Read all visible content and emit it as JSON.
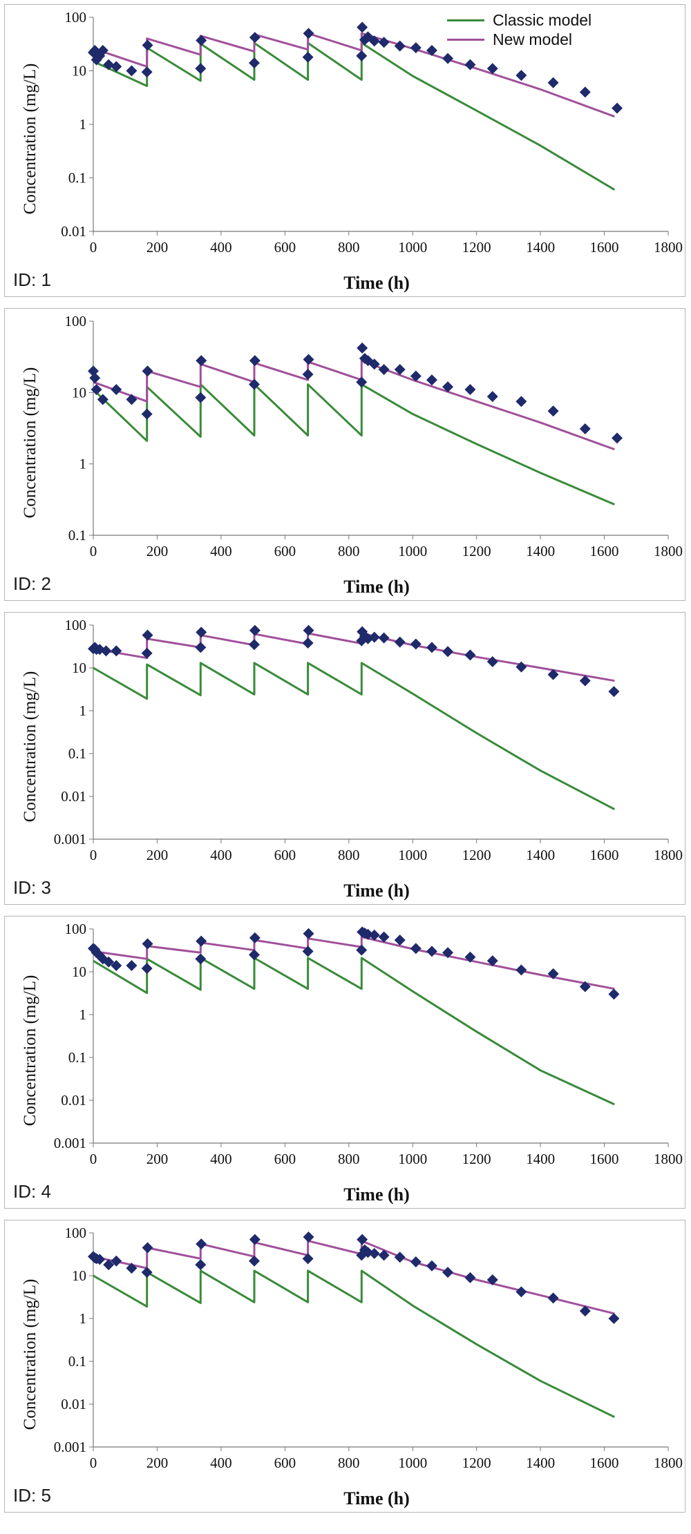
{
  "legend": {
    "entries": [
      {
        "label": "Classic model",
        "color": "#3a8a3a"
      },
      {
        "label": "New model",
        "color": "#a0509a"
      }
    ]
  },
  "colors": {
    "classic": "#3a8a3a",
    "new": "#a0509a",
    "observed": "#1f2a6b",
    "axis": "#777777"
  },
  "chart_data": [
    {
      "type": "line",
      "panel_label": "ID: 1",
      "xlabel": "Time (h)",
      "ylabel": "Concentration (mg/L)",
      "y_scale": "log",
      "xlim": [
        0,
        1800
      ],
      "ylim": [
        0.01,
        100
      ],
      "xticks": [
        "0",
        "200",
        "400",
        "600",
        "800",
        "1000",
        "1200",
        "1400",
        "1600",
        "1800"
      ],
      "yticks": [
        "0.01",
        "0.1",
        "1",
        "10",
        "100"
      ],
      "series": [
        {
          "name": "Classic model",
          "x": [
            0,
            168,
            168,
            336,
            336,
            504,
            504,
            672,
            672,
            840,
            840,
            1000,
            1200,
            1400,
            1632
          ],
          "y": [
            15,
            5.2,
            27,
            6.5,
            32,
            6.8,
            33,
            6.8,
            33,
            6.8,
            33,
            8,
            1.8,
            0.4,
            0.06
          ]
        },
        {
          "name": "New model",
          "x": [
            0,
            168,
            168,
            336,
            336,
            504,
            504,
            672,
            672,
            840,
            840,
            1000,
            1200,
            1400,
            1632
          ],
          "y": [
            26,
            12,
            40,
            20,
            45,
            23,
            48,
            25,
            50,
            24,
            50,
            26,
            11,
            4.5,
            1.4
          ]
        },
        {
          "type": "scatter",
          "x": [
            0,
            5,
            10,
            20,
            30,
            48,
            72,
            120,
            168,
            170,
            336,
            338,
            504,
            506,
            672,
            674,
            840,
            842,
            850,
            860,
            880,
            910,
            960,
            1010,
            1060,
            1110,
            1180,
            1250,
            1340,
            1440,
            1540,
            1640
          ],
          "y": [
            22,
            24,
            16,
            19,
            24,
            13,
            12,
            10,
            9.5,
            30,
            11,
            37,
            14,
            42,
            18,
            50,
            19,
            65,
            38,
            43,
            36,
            34,
            29,
            27,
            24,
            17,
            13,
            11,
            8.2,
            6,
            4,
            2
          ]
        }
      ]
    },
    {
      "type": "line",
      "panel_label": "ID: 2",
      "xlabel": "Time (h)",
      "ylabel": "Concentration (mg/L)",
      "y_scale": "log",
      "xlim": [
        0,
        1800
      ],
      "ylim": [
        0.1,
        100
      ],
      "xticks": [
        "0",
        "200",
        "400",
        "600",
        "800",
        "1000",
        "1200",
        "1400",
        "1600",
        "1800"
      ],
      "yticks": [
        "0.1",
        "1",
        "10",
        "100"
      ],
      "series": [
        {
          "name": "Classic model",
          "x": [
            0,
            168,
            168,
            336,
            336,
            504,
            504,
            672,
            672,
            840,
            840,
            1000,
            1200,
            1400,
            1632
          ],
          "y": [
            11,
            2.1,
            12,
            2.4,
            13,
            2.5,
            13,
            2.5,
            13,
            2.5,
            13,
            5,
            1.9,
            0.75,
            0.27
          ]
        },
        {
          "name": "New model",
          "x": [
            0,
            168,
            168,
            336,
            336,
            504,
            504,
            672,
            672,
            840,
            840,
            1000,
            1200,
            1400,
            1632
          ],
          "y": [
            14,
            7.5,
            20,
            12,
            25,
            14,
            26,
            15,
            27,
            15,
            28,
            15,
            7.5,
            3.8,
            1.6
          ]
        },
        {
          "type": "scatter",
          "x": [
            0,
            5,
            10,
            30,
            72,
            120,
            168,
            170,
            336,
            338,
            504,
            506,
            672,
            674,
            840,
            842,
            850,
            860,
            880,
            910,
            960,
            1010,
            1060,
            1110,
            1180,
            1250,
            1340,
            1440,
            1540,
            1640
          ],
          "y": [
            20,
            16,
            11,
            8,
            11,
            8,
            5,
            20,
            8.5,
            28,
            13,
            28,
            18,
            29,
            14,
            42,
            30,
            28,
            25,
            21,
            21,
            17,
            15,
            12,
            11,
            8.8,
            7.5,
            5.5,
            3.1,
            2.3
          ]
        }
      ]
    },
    {
      "type": "line",
      "panel_label": "ID: 3",
      "xlabel": "Time (h)",
      "ylabel": "Concentration (mg/L)",
      "y_scale": "log",
      "xlim": [
        0,
        1800
      ],
      "ylim": [
        0.001,
        100
      ],
      "xticks": [
        "0",
        "200",
        "400",
        "600",
        "800",
        "1000",
        "1200",
        "1400",
        "1600",
        "1800"
      ],
      "yticks": [
        "0.001",
        "0.01",
        "0.1",
        "1",
        "10",
        "100"
      ],
      "series": [
        {
          "name": "Classic model",
          "x": [
            0,
            168,
            168,
            336,
            336,
            504,
            504,
            672,
            672,
            840,
            840,
            1000,
            1200,
            1400,
            1632
          ],
          "y": [
            10,
            1.9,
            12,
            2.3,
            13,
            2.4,
            13,
            2.4,
            13,
            2.4,
            13,
            2.5,
            0.3,
            0.04,
            0.005
          ]
        },
        {
          "name": "New model",
          "x": [
            0,
            168,
            168,
            336,
            336,
            504,
            504,
            672,
            672,
            840,
            840,
            1000,
            1200,
            1400,
            1632
          ],
          "y": [
            28,
            17,
            48,
            30,
            58,
            34,
            62,
            36,
            64,
            37,
            64,
            34,
            18,
            10,
            5
          ]
        },
        {
          "type": "scatter",
          "x": [
            0,
            5,
            10,
            20,
            40,
            72,
            168,
            170,
            336,
            338,
            504,
            506,
            672,
            674,
            840,
            842,
            850,
            860,
            880,
            910,
            960,
            1010,
            1060,
            1110,
            1180,
            1250,
            1340,
            1440,
            1540,
            1630
          ],
          "y": [
            28,
            30,
            27,
            27,
            25,
            25,
            22,
            58,
            30,
            68,
            35,
            75,
            38,
            75,
            43,
            70,
            55,
            48,
            52,
            50,
            40,
            36,
            30,
            24,
            20,
            14,
            10.5,
            7,
            5,
            2.8
          ]
        }
      ]
    },
    {
      "type": "line",
      "panel_label": "ID: 4",
      "xlabel": "Time (h)",
      "ylabel": "Concentration (mg/L)",
      "y_scale": "log",
      "xlim": [
        0,
        1800
      ],
      "ylim": [
        0.001,
        100
      ],
      "xticks": [
        "0",
        "200",
        "400",
        "600",
        "800",
        "1000",
        "1200",
        "1400",
        "1600",
        "1800"
      ],
      "yticks": [
        "0.001",
        "0.01",
        "0.1",
        "1",
        "10",
        "100"
      ],
      "series": [
        {
          "name": "Classic model",
          "x": [
            0,
            168,
            168,
            336,
            336,
            504,
            504,
            672,
            672,
            840,
            840,
            1000,
            1200,
            1400,
            1632
          ],
          "y": [
            18,
            3.2,
            20,
            3.8,
            21,
            4,
            21,
            4,
            21,
            4,
            21,
            3.5,
            0.4,
            0.05,
            0.008
          ]
        },
        {
          "name": "New model",
          "x": [
            0,
            168,
            168,
            336,
            336,
            504,
            504,
            672,
            672,
            840,
            840,
            1000,
            1200,
            1400,
            1632
          ],
          "y": [
            30,
            20,
            40,
            28,
            48,
            32,
            55,
            35,
            60,
            38,
            65,
            34,
            17,
            8.5,
            4
          ]
        },
        {
          "type": "scatter",
          "x": [
            0,
            5,
            10,
            20,
            30,
            48,
            72,
            120,
            168,
            170,
            336,
            338,
            504,
            506,
            672,
            674,
            840,
            842,
            850,
            860,
            880,
            910,
            960,
            1010,
            1060,
            1110,
            1180,
            1250,
            1340,
            1440,
            1540,
            1630
          ],
          "y": [
            35,
            33,
            28,
            24,
            20,
            17,
            14,
            14,
            12,
            45,
            20,
            52,
            25,
            62,
            30,
            78,
            32,
            85,
            80,
            75,
            72,
            65,
            55,
            35,
            30,
            28,
            22,
            18,
            11,
            9,
            4.5,
            3
          ]
        }
      ]
    },
    {
      "type": "line",
      "panel_label": "ID: 5",
      "xlabel": "Time (h)",
      "ylabel": "Concentration (mg/L)",
      "y_scale": "log",
      "xlim": [
        0,
        1800
      ],
      "ylim": [
        0.001,
        100
      ],
      "xticks": [
        "0",
        "200",
        "400",
        "600",
        "800",
        "1000",
        "1200",
        "1400",
        "1600",
        "1800"
      ],
      "yticks": [
        "0.001",
        "0.01",
        "0.1",
        "1",
        "10",
        "100"
      ],
      "series": [
        {
          "name": "Classic model",
          "x": [
            0,
            168,
            168,
            336,
            336,
            504,
            504,
            672,
            672,
            840,
            840,
            1000,
            1200,
            1400,
            1632
          ],
          "y": [
            10,
            1.9,
            12,
            2.3,
            13,
            2.4,
            13,
            2.4,
            13,
            2.4,
            13,
            2,
            0.25,
            0.035,
            0.005
          ]
        },
        {
          "name": "New model",
          "x": [
            0,
            168,
            168,
            336,
            336,
            504,
            504,
            672,
            672,
            840,
            840,
            1000,
            1200,
            1400,
            1632
          ],
          "y": [
            28,
            15,
            45,
            25,
            55,
            28,
            60,
            30,
            65,
            32,
            65,
            21,
            8,
            3.5,
            1.3
          ]
        },
        {
          "type": "scatter",
          "x": [
            0,
            5,
            10,
            20,
            48,
            72,
            120,
            168,
            170,
            336,
            338,
            504,
            506,
            672,
            674,
            840,
            842,
            850,
            860,
            880,
            910,
            960,
            1010,
            1060,
            1110,
            1180,
            1250,
            1340,
            1440,
            1540,
            1630
          ],
          "y": [
            28,
            26,
            25,
            24,
            18,
            22,
            15,
            12,
            45,
            18,
            55,
            22,
            70,
            25,
            80,
            30,
            70,
            40,
            35,
            33,
            30,
            27,
            21,
            17,
            12,
            9,
            8,
            4.2,
            3,
            1.5,
            1
          ]
        }
      ]
    }
  ]
}
